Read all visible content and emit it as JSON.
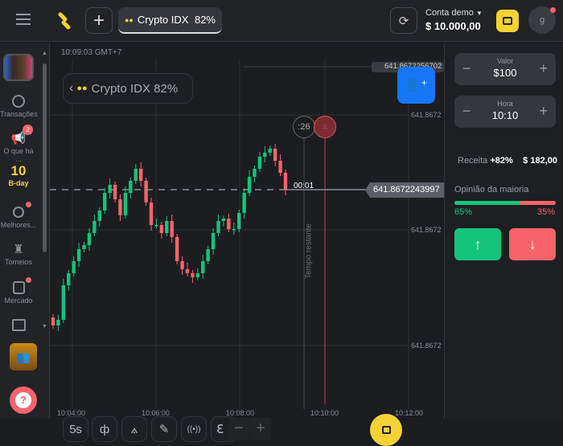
{
  "topbar": {
    "asset_name": "Crypto IDX",
    "asset_payout": "82%",
    "account_label": "Conta demo",
    "balance": "$ 10.000,00",
    "avatar_letter": "g",
    "icons": [
      "menu-icon",
      "logo-icon",
      "plus-icon",
      "refresh-icon",
      "wallet-icon"
    ]
  },
  "sidebar": {
    "items": [
      {
        "label": "Transações",
        "icon": "clock-icon"
      },
      {
        "label": "O que há ...",
        "icon": "megaphone-icon",
        "badge": "2"
      },
      {
        "label": "B-day",
        "icon": "birthday-10-icon",
        "number": "10"
      },
      {
        "label": "Melhores...",
        "icon": "award-icon"
      },
      {
        "label": "Torneios",
        "icon": "trophy-icon"
      },
      {
        "label": "Mercado",
        "icon": "shopping-bag-icon"
      },
      {
        "label": "",
        "icon": "gift-icon"
      }
    ]
  },
  "chart": {
    "clock": "10:09:03 GMT+7",
    "asset_chip": "Crypto IDX 82%",
    "top_price": "641.8672256702",
    "current_price": "641.8672243997",
    "countdown": ":26",
    "candle_timer": "00:01",
    "remaining_label": "Tempo restante",
    "timeframe": "5s",
    "colors": {
      "up": "#14c47a",
      "down": "#f7636b",
      "expiry_line": "#c2424a"
    }
  },
  "chart_data": {
    "type": "candlestick",
    "y_ticks": [
      "641.8672",
      "641.8672",
      "641.8672"
    ],
    "x_ticks": [
      "10:04:00",
      "10:06:00",
      "10:08:00",
      "10:10:00",
      "10:12:00"
    ],
    "first_open": 641.86722308,
    "closes": [
      641.867222997,
      641.8672230551,
      641.867223412,
      641.8672235365,
      641.867223661,
      641.8672237855,
      641.867223827,
      641.8672239515,
      641.867224076,
      641.8672241839,
      641.8672243665,
      641.8672244495,
      641.8672243001,
      641.8672241341,
      641.8672243665,
      641.867224491,
      641.8672246155,
      641.867224491,
      641.8672242669,
      641.8672240345,
      641.8672240345,
      641.8672239515,
      641.867224076,
      641.86722391,
      641.867223661,
      641.867223578,
      641.8672235365,
      641.867223495,
      641.8672235365,
      641.867223661,
      641.8672237855,
      641.8672239515,
      641.867224076,
      641.8672241009,
      641.867223993,
      641.867223993,
      641.867224159,
      641.8672243665,
      641.8672245325,
      641.8672246155,
      641.86722474,
      641.8672247815,
      641.867224823,
      641.8672246985,
      641.867224574,
      641.8672243997
    ]
  },
  "panel": {
    "amount_label": "Valor",
    "amount": "$100",
    "time_label": "Hora",
    "time": "10:10",
    "payout_label": "Receita",
    "payout_pct": "+82%",
    "payout_value": "$ 182,00",
    "opinion_label": "Opinião da maioria",
    "opinion_up": "65%",
    "opinion_down": "35%",
    "opinion_up_fraction": 0.65
  }
}
